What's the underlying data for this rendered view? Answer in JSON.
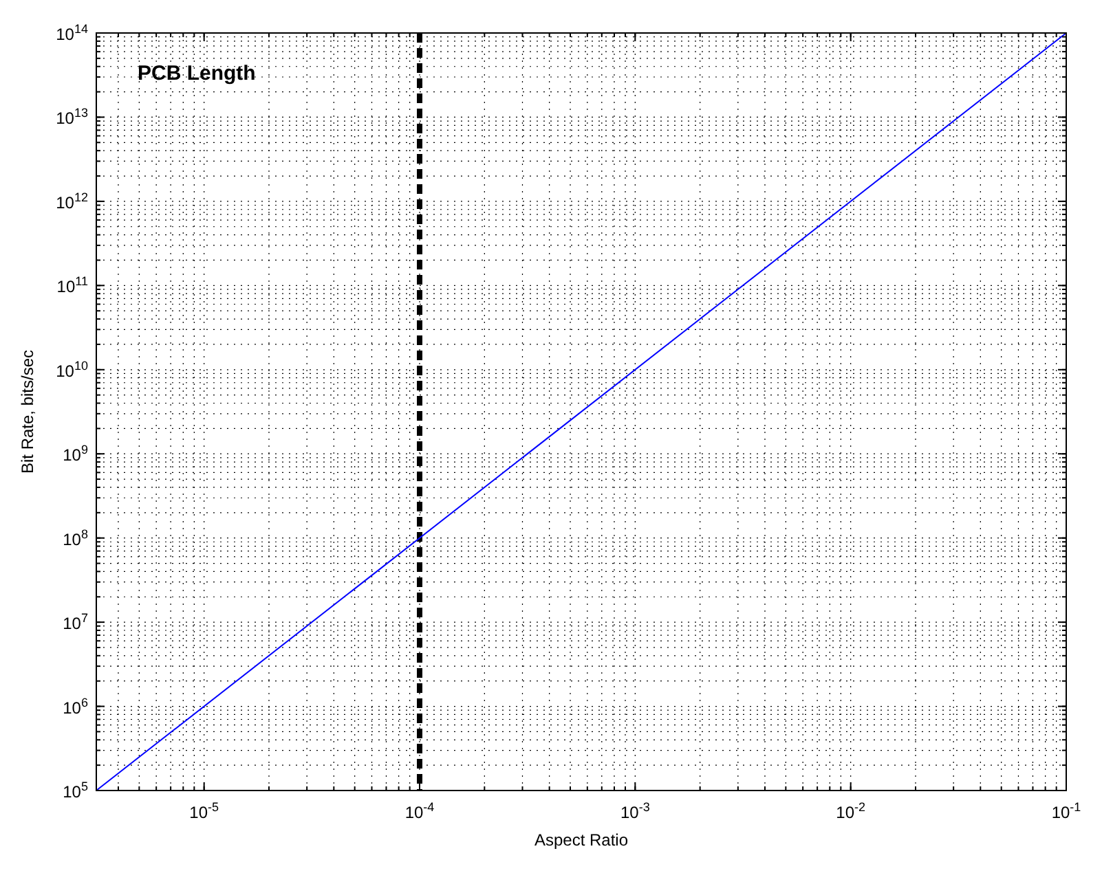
{
  "chart_data": {
    "type": "line",
    "xlabel": "Aspect Ratio",
    "ylabel": "Bit Rate, bits/sec",
    "annotations": [
      "PCB Length"
    ],
    "log": "xy",
    "grid": true,
    "line_style": "solid",
    "xlim": [
      3.162e-06,
      0.1
    ],
    "ylim": [
      100000.0,
      100000000000000.0
    ],
    "xticks": [
      {
        "value": 1e-05,
        "label": "10$^{-5}$"
      },
      {
        "value": 0.0001,
        "label": "10$^{-4}$"
      },
      {
        "value": 0.001,
        "label": "10$^{-3}$"
      },
      {
        "value": 0.01,
        "label": "10$^{-2}$"
      },
      {
        "value": 0.1,
        "label": "10$^{-1}$"
      }
    ],
    "yticks": [
      {
        "value": 100000.0,
        "label": "10$^{5}$"
      },
      {
        "value": 1000000.0,
        "label": "10$^{6}$"
      },
      {
        "value": 10000000.0,
        "label": "10$^{7}$"
      },
      {
        "value": 100000000.0,
        "label": "10$^{8}$"
      },
      {
        "value": 1000000000.0,
        "label": "10$^{9}$"
      },
      {
        "value": 10000000000.0,
        "label": "10$^{10}$"
      },
      {
        "value": 100000000000.0,
        "label": "10$^{11}$"
      },
      {
        "value": 1000000000000.0,
        "label": "10$^{12}$"
      },
      {
        "value": 10000000000000.0,
        "label": "10$^{13}$"
      },
      {
        "value": 100000000000000.0,
        "label": "10$^{14}$"
      }
    ],
    "ref_lines": [
      {
        "axis": "x",
        "value": 0.0001,
        "color": "#000000",
        "line_style": "dashed"
      }
    ],
    "series": [
      {
        "color": "#0000ff",
        "x": [
          3.162e-06,
          0.1
        ],
        "values": [
          100000.0,
          100000000000000.0
        ]
      }
    ]
  }
}
